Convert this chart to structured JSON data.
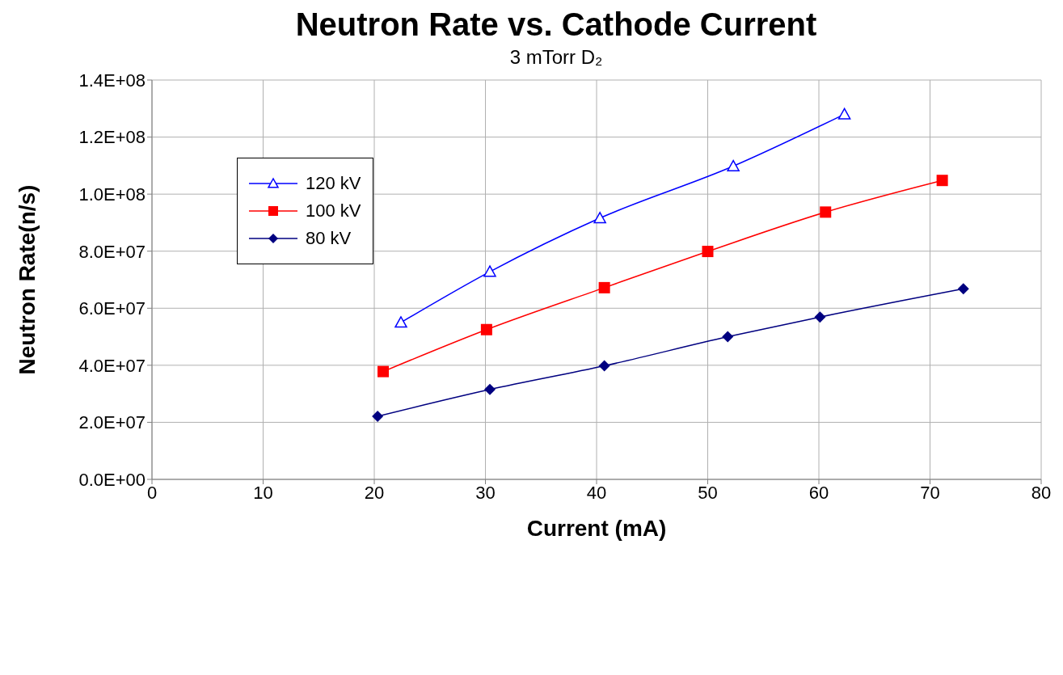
{
  "chart_data": {
    "type": "line",
    "title": "Neutron Rate vs. Cathode Current",
    "subtitle": "3 mTorr D₂",
    "xlabel": "Current (mA)",
    "ylabel": "Neutron Rate(n/s)",
    "xlim": [
      0,
      80
    ],
    "xticks": [
      0,
      10,
      20,
      30,
      40,
      50,
      60,
      70,
      80
    ],
    "ylim": [
      0,
      140000000
    ],
    "yticks": [
      {
        "value": 0,
        "label": "0.0E+00"
      },
      {
        "value": 20000000,
        "label": "2.0E+07"
      },
      {
        "value": 40000000,
        "label": "4.0E+07"
      },
      {
        "value": 60000000,
        "label": "6.0E+07"
      },
      {
        "value": 80000000,
        "label": "8.0E+07"
      },
      {
        "value": 100000000,
        "label": "1.0E+08"
      },
      {
        "value": 120000000,
        "label": "1.2E+08"
      },
      {
        "value": 140000000,
        "label": "1.4E+08"
      }
    ],
    "grid": true,
    "legend": "top left",
    "line_style": "solid",
    "series": [
      {
        "name": "120 kV",
        "color": "#0000ff",
        "marker": "triangle",
        "x": [
          22.4,
          30.4,
          40.3,
          52.3,
          62.3
        ],
        "values": [
          55000000,
          72800000,
          91600000,
          109800000,
          128000000
        ]
      },
      {
        "name": "100 kV",
        "color": "#ff0000",
        "marker": "square",
        "x": [
          20.8,
          30.1,
          40.7,
          50.0,
          60.6,
          71.1
        ],
        "values": [
          37800000,
          52500000,
          67200000,
          79900000,
          93700000,
          104800000
        ]
      },
      {
        "name": "80 kV",
        "color": "#000080",
        "marker": "diamond",
        "x": [
          20.3,
          30.4,
          40.7,
          51.8,
          60.1,
          73.0
        ],
        "values": [
          22100000,
          31500000,
          39800000,
          50000000,
          56900000,
          66800000
        ]
      }
    ]
  }
}
